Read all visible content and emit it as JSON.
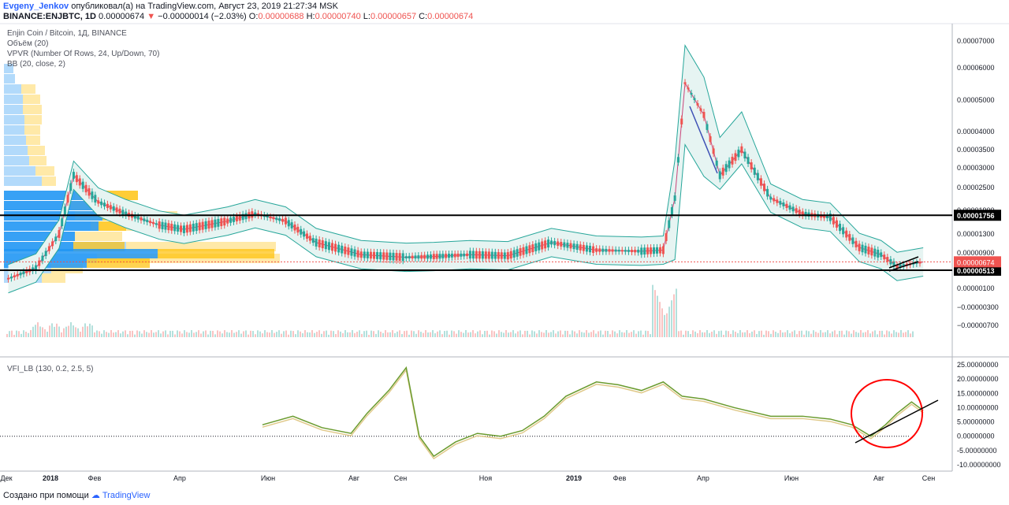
{
  "header": {
    "author": "Evgeny_Jenkov",
    "published": "опубликовал(а) на TradingView.com, Август 23, 2019 21:27:34 MSK",
    "symbol": "BINANCE:ENJBTC, 1D",
    "last": "0.00000674",
    "change": "−0.00000014 (−2.03%)",
    "o_label": "O:",
    "o": "0.00000688",
    "h_label": "H:",
    "h": "0.00000740",
    "l_label": "L:",
    "l": "0.00000657",
    "c_label": "C:",
    "c": "0.00000674"
  },
  "legend": {
    "line1": "Enjin Coin / Bitcoin, 1Д, BINANCE",
    "line2": "Объём (20)",
    "line3": "VPVR (Number Of Rows, 24, Up/Down, 70)",
    "line4": "BB (20, close, 2)",
    "vfi": "VFI_LB (130, 0.2, 2.5, 5)"
  },
  "footer": {
    "created": "Создано при помощи",
    "brand": "TradingView"
  },
  "colors": {
    "up": "#26a69a",
    "down": "#ef5350",
    "bb": "#26a69a",
    "bb_fill": "#e6f4f2",
    "basis": "#c2185b",
    "vfi": "#6a9b2e",
    "vfi_signal": "#e0c98a",
    "vp_up": "#2196f3",
    "vp_down": "#ffc107",
    "hline": "#000000",
    "circle": "#ff0000"
  },
  "chart_data": [
    {
      "type": "line",
      "title": "Enjin Coin / Bitcoin, 1Д, BINANCE",
      "scale": "log",
      "y_ticks": [
        "0.00007000",
        "0.00006000",
        "0.00005000",
        "0.00004000",
        "0.00003500",
        "0.00003000",
        "0.00002500",
        "0.00001900",
        "0.00001300",
        "0.00000900",
        "0.00000513",
        "0.00000100",
        "−0.00000300",
        "−0.00000700"
      ],
      "x_ticks": [
        "Дек",
        "2018",
        "Фев",
        "Апр",
        "Июн",
        "Авг",
        "Сен",
        "Ноя",
        "2019",
        "Фев",
        "Апр",
        "Июн",
        "Авг",
        "Сен"
      ],
      "horizontal_levels": [
        "0.00001756",
        "0.00000513"
      ],
      "price_badge": "0.00000674",
      "series": [
        {
          "x": [
            "2017-12-01",
            "2017-12-20",
            "2018-01-05",
            "2018-01-15",
            "2018-02-01",
            "2018-02-20",
            "2018-03-15",
            "2018-04-01",
            "2018-05-01",
            "2018-05-20",
            "2018-06-10",
            "2018-07-01",
            "2018-08-01",
            "2018-09-01",
            "2018-09-20",
            "2018-10-15",
            "2018-11-10",
            "2018-12-10",
            "2019-01-10",
            "2019-02-10",
            "2019-02-25",
            "2019-03-05",
            "2019-03-12",
            "2019-03-25",
            "2019-04-05",
            "2019-04-20",
            "2019-05-10",
            "2019-06-01",
            "2019-06-20",
            "2019-07-10",
            "2019-07-25",
            "2019-08-05",
            "2019-08-23"
          ],
          "y": [
            3.9e-06,
            5.5e-06,
            1.3e-05,
            2.8e-05,
            2.1e-05,
            1.8e-05,
            1.5e-05,
            1.4e-05,
            1.6e-05,
            1.8e-05,
            1.6e-05,
            1.1e-05,
            8.5e-06,
            7.8e-06,
            8e-06,
            8.5e-06,
            8.2e-06,
            1.1e-05,
            9.5e-06,
            9.3e-06,
            9.5e-06,
            2.2e-05,
            5.5e-05,
            4.5e-05,
            2.8e-05,
            3.5e-05,
            2.2e-05,
            1.8e-05,
            1.7e-05,
            1e-05,
            8.5e-06,
            5.8e-06,
            6.7e-06
          ]
        }
      ]
    },
    {
      "type": "line",
      "title": "VFI_LB (130, 0.2, 2.5, 5)",
      "y_ticks": [
        "25.00000000",
        "20.00000000",
        "15.00000000",
        "10.00000000",
        "5.00000000",
        "0.00000000",
        "-5.00000000",
        "-10.00000000"
      ],
      "ylim": [
        -10,
        25
      ],
      "series": [
        {
          "x": [
            "2018-05-25",
            "2018-06-15",
            "2018-07-05",
            "2018-07-25",
            "2018-08-05",
            "2018-08-20",
            "2018-09-01",
            "2018-09-10",
            "2018-09-20",
            "2018-10-05",
            "2018-10-20",
            "2018-11-05",
            "2018-11-20",
            "2018-12-05",
            "2018-12-20",
            "2019-01-10",
            "2019-01-25",
            "2019-02-10",
            "2019-02-25",
            "2019-03-10",
            "2019-03-25",
            "2019-04-15",
            "2019-05-10",
            "2019-06-01",
            "2019-06-20",
            "2019-07-05",
            "2019-07-18",
            "2019-07-28",
            "2019-08-05",
            "2019-08-15",
            "2019-08-23"
          ],
          "y": [
            4,
            7,
            3,
            1,
            8,
            16,
            24,
            0,
            -7,
            -2,
            1,
            0,
            2,
            7,
            14,
            19,
            18,
            16,
            19,
            14,
            13,
            10,
            7,
            7,
            6,
            4,
            0,
            4,
            8,
            12,
            9
          ]
        }
      ]
    }
  ]
}
